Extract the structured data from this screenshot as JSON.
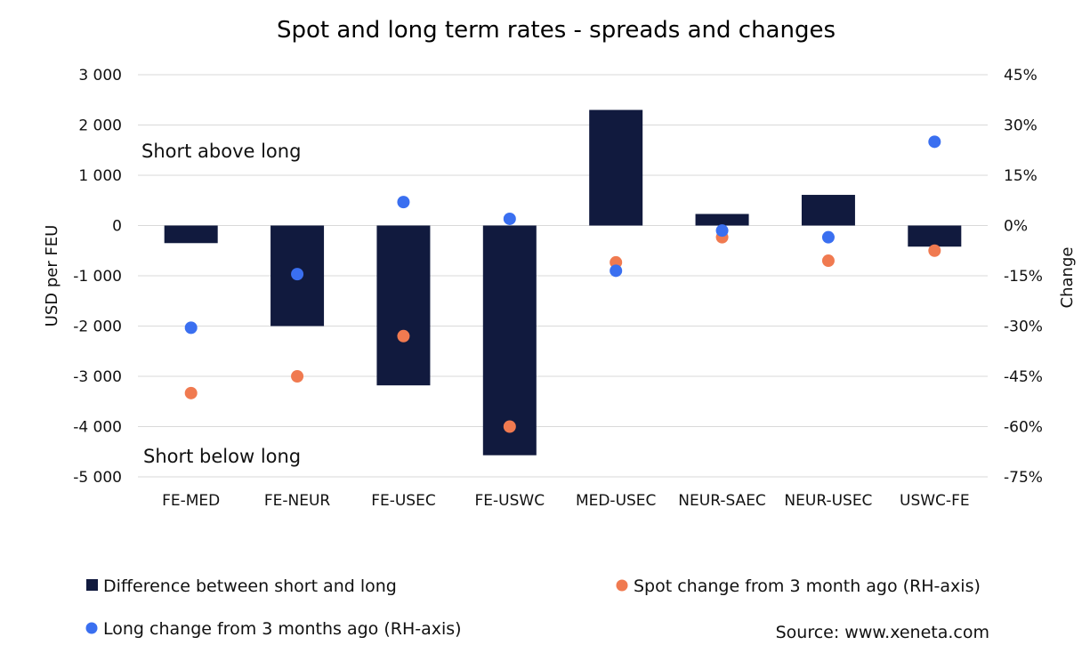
{
  "chart_data": {
    "type": "bar",
    "title": "Spot and long term rates - spreads and changes",
    "categories": [
      "FE-MED",
      "FE-NEUR",
      "FE-USEC",
      "FE-USWC",
      "MED-USEC",
      "NEUR-SAEC",
      "NEUR-USEC",
      "USWC-FE"
    ],
    "ylabel": "USD per FEU",
    "y2label": "Change",
    "ylim": [
      -5000,
      3000
    ],
    "y2lim": [
      -75,
      45
    ],
    "yticks": [
      3000,
      2000,
      1000,
      0,
      -1000,
      -2000,
      -3000,
      -4000,
      -5000
    ],
    "ytick_labels": [
      "3 000",
      "2 000",
      "1 000",
      "0",
      "-1 000",
      "-2 000",
      "-3 000",
      "-4 000",
      "-5 000"
    ],
    "y2ticks": [
      45,
      30,
      15,
      0,
      -15,
      -30,
      -45,
      -60,
      -75
    ],
    "y2tick_labels": [
      "45%",
      "30%",
      "15%",
      "0%",
      "-15%",
      "-30%",
      "-45%",
      "-60%",
      "-75%"
    ],
    "grid": true,
    "series": [
      {
        "name": "Difference between short and long",
        "kind": "bar",
        "axis": "left",
        "color": "#111a3e",
        "values": [
          -350,
          -2000,
          -3180,
          -4570,
          2300,
          230,
          610,
          -420
        ]
      },
      {
        "name": "Spot change from 3 month ago (RH-axis)",
        "kind": "scatter",
        "axis": "right",
        "color": "#f07a50",
        "values": [
          -50,
          -45,
          -33,
          -60,
          -11,
          -3.5,
          -10.5,
          -7.5
        ]
      },
      {
        "name": "Long change from 3 months ago (RH-axis)",
        "kind": "scatter",
        "axis": "right",
        "color": "#3a6ff0",
        "values": [
          -30.5,
          -14.5,
          7,
          2,
          -13.5,
          -1.5,
          -3.5,
          25
        ]
      }
    ],
    "annotations": [
      "Short above long",
      "Short below long"
    ],
    "source": "Source: www.xeneta.com"
  }
}
